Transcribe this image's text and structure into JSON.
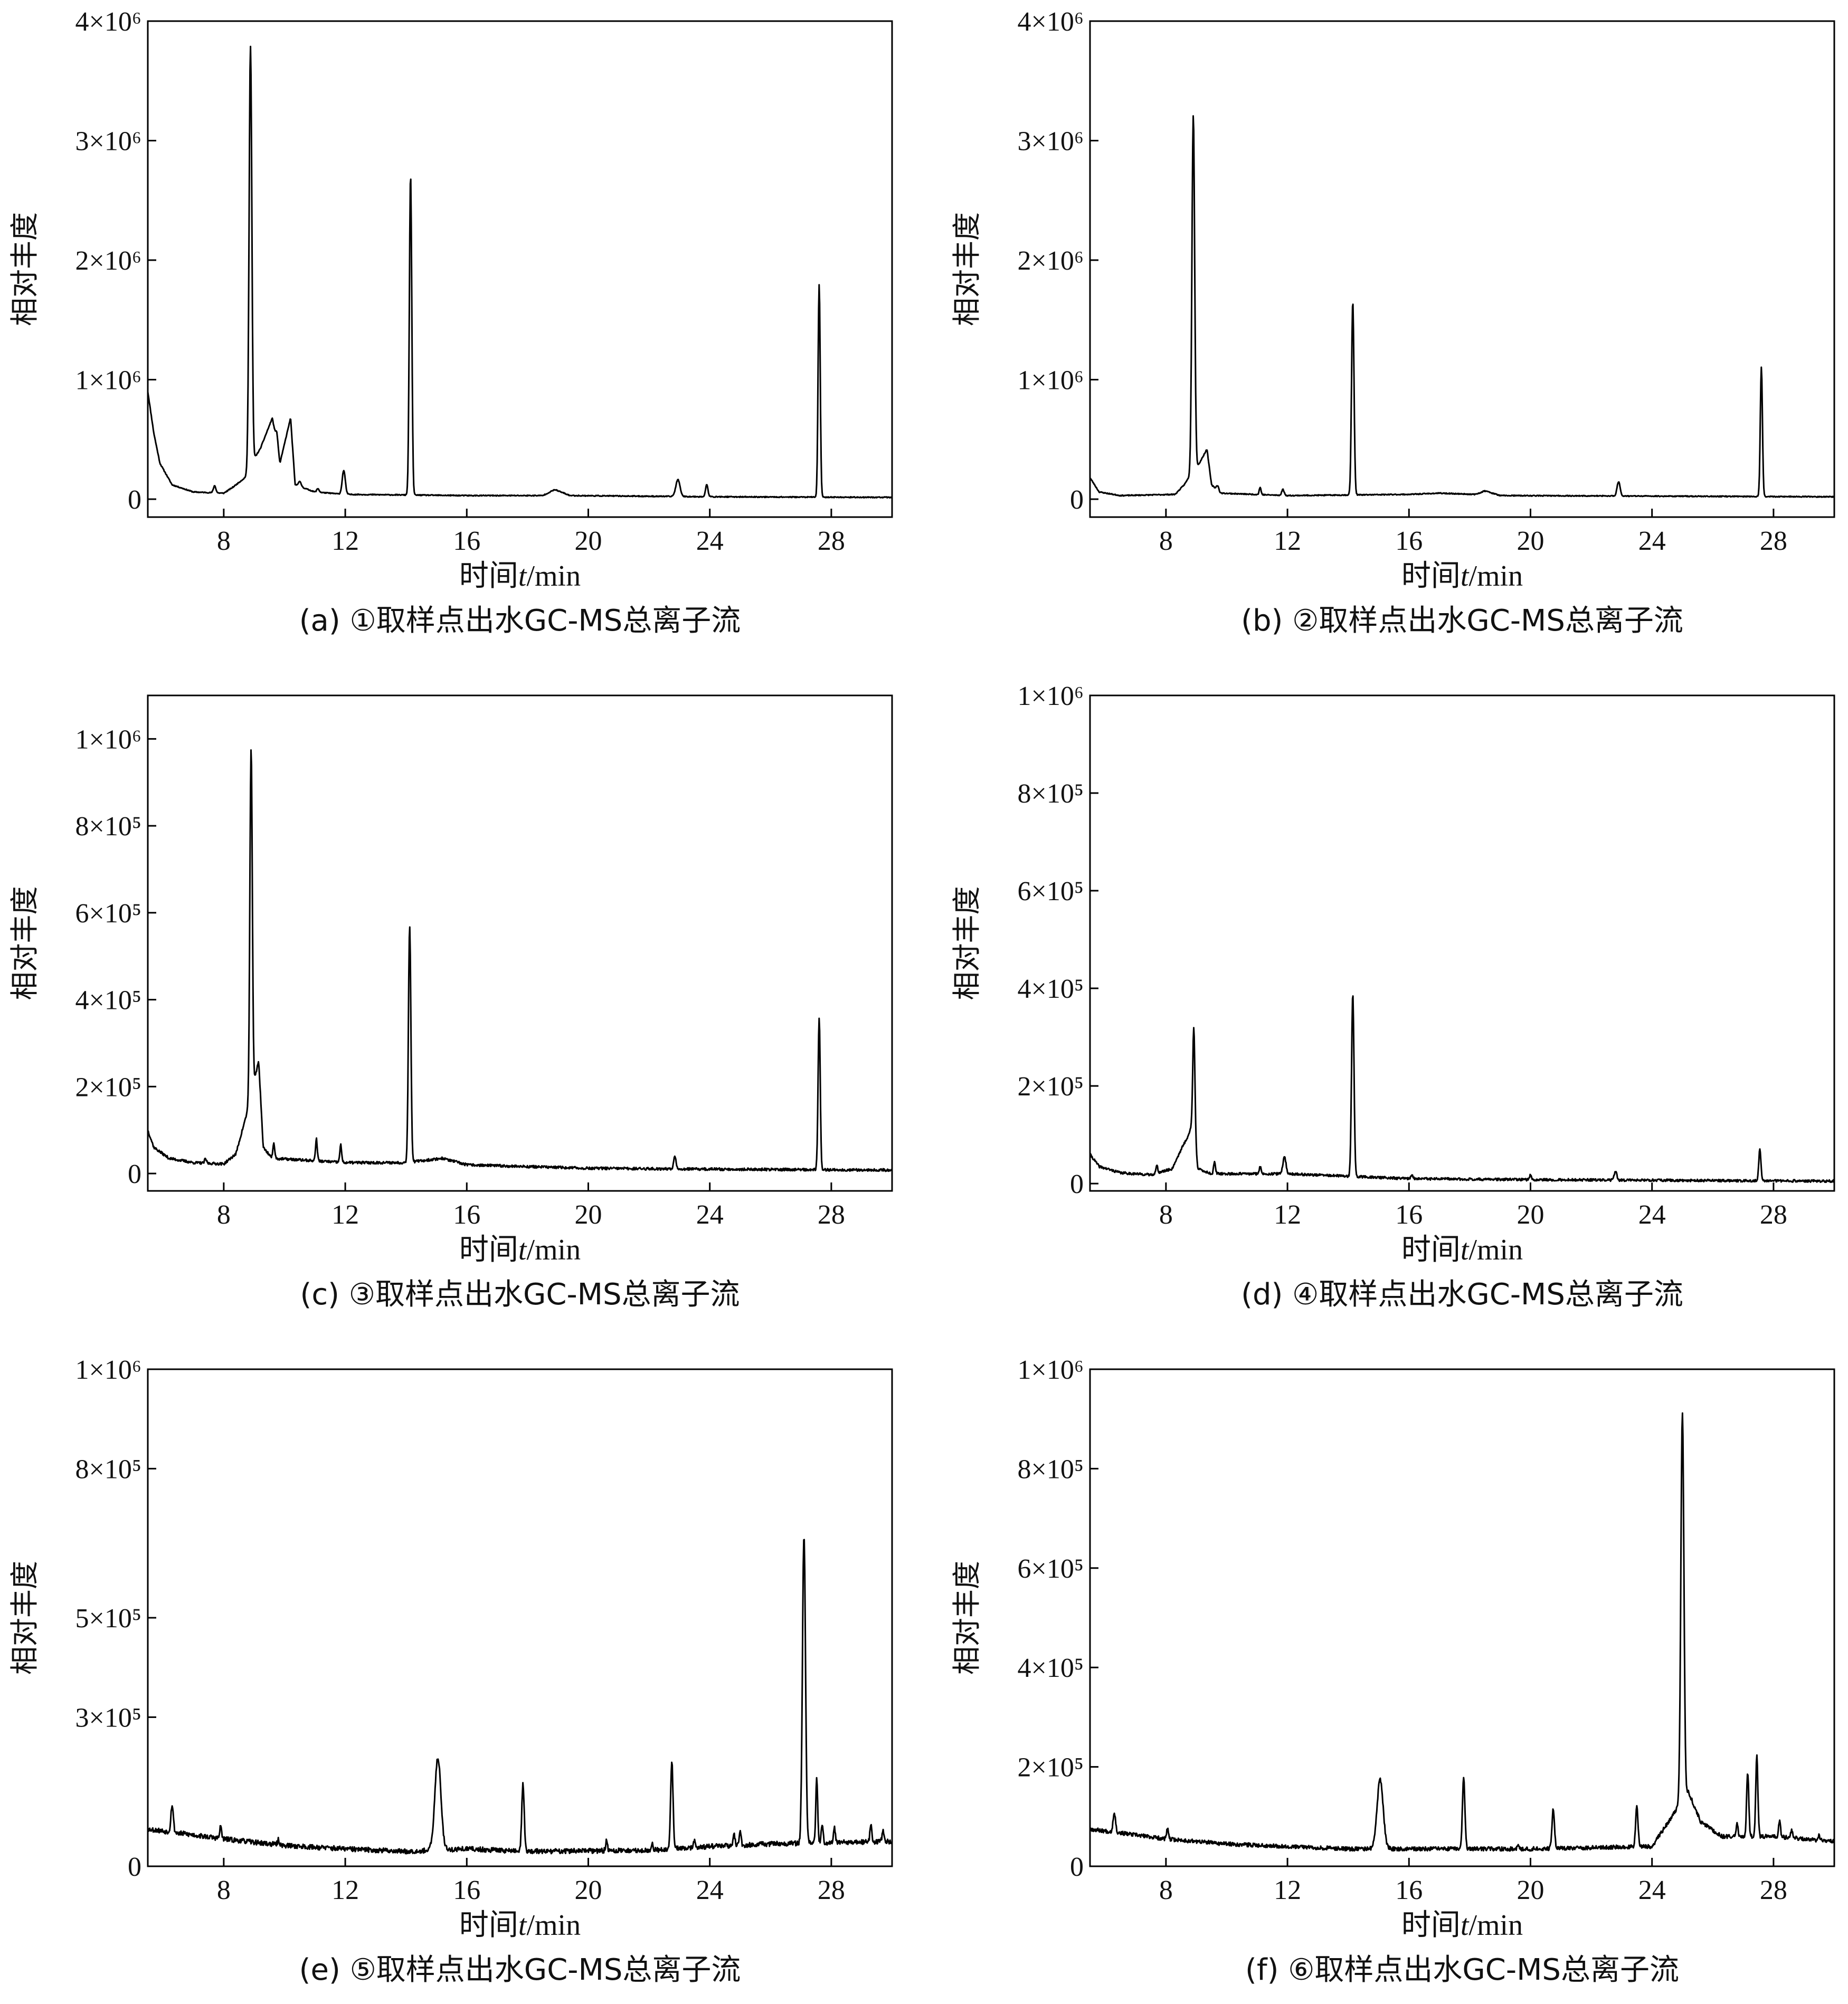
{
  "panels": [
    {
      "caption": "(a) ①取样点出水GC-MS总离子流",
      "ylabel": "相对丰度",
      "xlabel_pre": "时间",
      "xlabel_var": "t",
      "xlabel_unit": "/min",
      "chart_data": {
        "type": "line",
        "xlim": [
          5.5,
          30
        ],
        "ylim": [
          -0.15,
          4.0
        ],
        "x_ticks": [
          8,
          12,
          16,
          20,
          24,
          28
        ],
        "y_ticks": [
          {
            "value": 0,
            "label": "0"
          },
          {
            "value": 1,
            "label": "1×10⁶"
          },
          {
            "value": 2,
            "label": "2×10⁶"
          },
          {
            "value": 3,
            "label": "3×10⁶"
          },
          {
            "value": 4,
            "label": "4×10⁶"
          }
        ],
        "y_unit": 1000000,
        "baseline": [
          [
            5.5,
            0.9
          ],
          [
            5.7,
            0.55
          ],
          [
            5.9,
            0.3
          ],
          [
            6.3,
            0.12
          ],
          [
            7,
            0.06
          ],
          [
            8,
            0.05
          ],
          [
            8.3,
            0.1
          ],
          [
            8.7,
            0.18
          ],
          [
            8.85,
            0.28
          ],
          [
            9.2,
            0.42
          ],
          [
            9.6,
            0.68
          ],
          [
            9.85,
            0.3
          ],
          [
            10.2,
            0.68
          ],
          [
            10.35,
            0.12
          ],
          [
            11,
            0.06
          ],
          [
            12,
            0.04
          ],
          [
            16,
            0.03
          ],
          [
            18.5,
            0.03
          ],
          [
            18.9,
            0.08
          ],
          [
            19.4,
            0.03
          ],
          [
            24,
            0.02
          ],
          [
            30,
            0.015
          ]
        ],
        "peaks": [
          [
            8.88,
            3.5,
            0.045
          ],
          [
            14.15,
            2.68,
            0.04
          ],
          [
            27.6,
            1.78,
            0.035
          ],
          [
            9.75,
            0.1,
            0.04
          ],
          [
            11.95,
            0.2,
            0.05
          ],
          [
            22.95,
            0.14,
            0.07
          ],
          [
            23.9,
            0.1,
            0.04
          ],
          [
            7.7,
            0.06,
            0.04
          ],
          [
            10.5,
            0.04,
            0.05
          ],
          [
            11.1,
            0.03,
            0.04
          ]
        ],
        "noise": 0.004,
        "seed": 11
      }
    },
    {
      "caption": "(b) ②取样点出水GC-MS总离子流",
      "ylabel": "相对丰度",
      "xlabel_pre": "时间",
      "xlabel_var": "t",
      "xlabel_unit": "/min",
      "chart_data": {
        "type": "line",
        "xlim": [
          5.5,
          30
        ],
        "ylim": [
          -0.15,
          4.0
        ],
        "x_ticks": [
          8,
          12,
          16,
          20,
          24,
          28
        ],
        "y_ticks": [
          {
            "value": 0,
            "label": "0"
          },
          {
            "value": 1,
            "label": "1×10⁶"
          },
          {
            "value": 2,
            "label": "2×10⁶"
          },
          {
            "value": 3,
            "label": "3×10⁶"
          },
          {
            "value": 4,
            "label": "4×10⁶"
          }
        ],
        "y_unit": 1000000,
        "baseline": [
          [
            5.5,
            0.18
          ],
          [
            5.8,
            0.06
          ],
          [
            6.5,
            0.03
          ],
          [
            8.3,
            0.04
          ],
          [
            8.6,
            0.12
          ],
          [
            8.85,
            0.22
          ],
          [
            9.1,
            0.3
          ],
          [
            9.35,
            0.42
          ],
          [
            9.5,
            0.12
          ],
          [
            9.8,
            0.05
          ],
          [
            12,
            0.03
          ],
          [
            16,
            0.04
          ],
          [
            17,
            0.05
          ],
          [
            18.2,
            0.04
          ],
          [
            18.5,
            0.07
          ],
          [
            19,
            0.03
          ],
          [
            30,
            0.02
          ]
        ],
        "peaks": [
          [
            8.9,
            2.98,
            0.045
          ],
          [
            14.15,
            1.62,
            0.04
          ],
          [
            27.6,
            1.08,
            0.035
          ],
          [
            22.9,
            0.12,
            0.05
          ],
          [
            11.1,
            0.06,
            0.03
          ],
          [
            11.85,
            0.05,
            0.04
          ],
          [
            9.7,
            0.04,
            0.04
          ]
        ],
        "noise": 0.004,
        "seed": 23
      }
    },
    {
      "caption": "(c) ③取样点出水GC-MS总离子流",
      "ylabel": "相对丰度",
      "xlabel_pre": "时间",
      "xlabel_var": "t",
      "xlabel_unit": "/min",
      "chart_data": {
        "type": "line",
        "xlim": [
          5.5,
          30
        ],
        "ylim": [
          -0.4,
          11.0
        ],
        "x_ticks": [
          8,
          12,
          16,
          20,
          24,
          28
        ],
        "y_ticks": [
          {
            "value": 0,
            "label": "0"
          },
          {
            "value": 2,
            "label": "2×10⁵"
          },
          {
            "value": 4,
            "label": "4×10⁵"
          },
          {
            "value": 6,
            "label": "6×10⁵"
          },
          {
            "value": 8,
            "label": "8×10⁵"
          },
          {
            "value": 10,
            "label": "1×10⁶"
          }
        ],
        "y_unit": 100000,
        "baseline": [
          [
            5.5,
            1.0
          ],
          [
            5.7,
            0.6
          ],
          [
            6.2,
            0.35
          ],
          [
            7,
            0.25
          ],
          [
            8,
            0.22
          ],
          [
            8.4,
            0.45
          ],
          [
            8.65,
            1.1
          ],
          [
            8.85,
            1.6
          ],
          [
            9.0,
            2.1
          ],
          [
            9.15,
            2.6
          ],
          [
            9.3,
            0.6
          ],
          [
            9.6,
            0.35
          ],
          [
            12,
            0.25
          ],
          [
            14,
            0.25
          ],
          [
            15.2,
            0.35
          ],
          [
            16,
            0.2
          ],
          [
            20,
            0.12
          ],
          [
            24,
            0.1
          ],
          [
            30,
            0.08
          ]
        ],
        "peaks": [
          [
            8.9,
            8.0,
            0.04
          ],
          [
            14.12,
            5.45,
            0.04
          ],
          [
            27.6,
            3.5,
            0.035
          ],
          [
            9.65,
            0.35,
            0.03
          ],
          [
            11.05,
            0.5,
            0.03
          ],
          [
            11.85,
            0.4,
            0.03
          ],
          [
            22.85,
            0.3,
            0.04
          ],
          [
            7.4,
            0.1,
            0.03
          ]
        ],
        "noise": 0.03,
        "seed": 37
      }
    },
    {
      "caption": "(d) ④取样点出水GC-MS总离子流",
      "ylabel": "相对丰度",
      "xlabel_pre": "时间",
      "xlabel_var": "t",
      "xlabel_unit": "/min",
      "chart_data": {
        "type": "line",
        "xlim": [
          5.5,
          30
        ],
        "ylim": [
          -0.15,
          10.0
        ],
        "x_ticks": [
          8,
          12,
          16,
          20,
          24,
          28
        ],
        "y_ticks": [
          {
            "value": 0,
            "label": "0"
          },
          {
            "value": 2,
            "label": "2×10⁵"
          },
          {
            "value": 4,
            "label": "4×10⁵"
          },
          {
            "value": 6,
            "label": "6×10⁵"
          },
          {
            "value": 8,
            "label": "8×10⁵"
          },
          {
            "value": 10,
            "label": "1×10⁶"
          }
        ],
        "y_unit": 100000,
        "baseline": [
          [
            5.5,
            0.6
          ],
          [
            5.8,
            0.35
          ],
          [
            6.5,
            0.22
          ],
          [
            7.5,
            0.18
          ],
          [
            8.2,
            0.3
          ],
          [
            8.5,
            0.7
          ],
          [
            8.75,
            1.0
          ],
          [
            8.9,
            1.3
          ],
          [
            9.05,
            0.3
          ],
          [
            9.5,
            0.2
          ],
          [
            12,
            0.2
          ],
          [
            14,
            0.15
          ],
          [
            16,
            0.1
          ],
          [
            20,
            0.08
          ],
          [
            30,
            0.05
          ]
        ],
        "peaks": [
          [
            8.92,
            2.0,
            0.035
          ],
          [
            14.15,
            3.75,
            0.04
          ],
          [
            27.55,
            0.65,
            0.035
          ],
          [
            11.9,
            0.35,
            0.05
          ],
          [
            9.6,
            0.25,
            0.03
          ],
          [
            7.7,
            0.15,
            0.03
          ],
          [
            11.1,
            0.15,
            0.03
          ],
          [
            22.8,
            0.18,
            0.04
          ],
          [
            16.1,
            0.1,
            0.03
          ],
          [
            20,
            0.1,
            0.03
          ]
        ],
        "noise": 0.025,
        "seed": 41
      }
    },
    {
      "caption": "(e) ⑤取样点出水GC-MS总离子流",
      "ylabel": "相对丰度",
      "xlabel_pre": "时间",
      "xlabel_var": "t",
      "xlabel_unit": "/min",
      "chart_data": {
        "type": "line",
        "xlim": [
          5.5,
          30
        ],
        "ylim": [
          0,
          10.0
        ],
        "x_ticks": [
          8,
          12,
          16,
          20,
          24,
          28
        ],
        "y_ticks": [
          {
            "value": 0,
            "label": "0"
          },
          {
            "value": 3,
            "label": "3×10⁵"
          },
          {
            "value": 5,
            "label": "5×10⁵"
          },
          {
            "value": 8,
            "label": "8×10⁵"
          },
          {
            "value": 10,
            "label": "1×10⁶"
          }
        ],
        "y_unit": 100000,
        "baseline": [
          [
            5.5,
            0.75
          ],
          [
            8,
            0.55
          ],
          [
            10,
            0.42
          ],
          [
            12,
            0.35
          ],
          [
            14,
            0.3
          ],
          [
            16,
            0.35
          ],
          [
            18,
            0.3
          ],
          [
            22,
            0.32
          ],
          [
            24,
            0.4
          ],
          [
            26,
            0.45
          ],
          [
            30,
            0.5
          ]
        ],
        "peaks": [
          [
            15.05,
            1.85,
            0.1
          ],
          [
            17.85,
            1.35,
            0.04
          ],
          [
            22.75,
            1.75,
            0.04
          ],
          [
            27.1,
            6.2,
            0.05
          ],
          [
            27.52,
            1.3,
            0.03
          ],
          [
            6.3,
            0.55,
            0.04
          ],
          [
            7.9,
            0.25,
            0.03
          ],
          [
            9.8,
            0.1,
            0.03
          ],
          [
            20.6,
            0.2,
            0.03
          ],
          [
            22.1,
            0.15,
            0.03
          ],
          [
            23.5,
            0.15,
            0.03
          ],
          [
            24.8,
            0.2,
            0.03
          ],
          [
            25,
            0.3,
            0.03
          ],
          [
            27.7,
            0.4,
            0.03
          ],
          [
            28.1,
            0.3,
            0.03
          ],
          [
            29.3,
            0.35,
            0.03
          ],
          [
            29.7,
            0.2,
            0.03
          ]
        ],
        "noise": 0.05,
        "seed": 53
      }
    },
    {
      "caption": "(f) ⑥取样点出水GC-MS总离子流",
      "ylabel": "相对丰度",
      "xlabel_pre": "时间",
      "xlabel_var": "t",
      "xlabel_unit": "/min",
      "chart_data": {
        "type": "line",
        "xlim": [
          5.5,
          30
        ],
        "ylim": [
          0,
          10.0
        ],
        "x_ticks": [
          8,
          12,
          16,
          20,
          24,
          28
        ],
        "y_ticks": [
          {
            "value": 0,
            "label": "0"
          },
          {
            "value": 2,
            "label": "2×10⁵"
          },
          {
            "value": 4,
            "label": "4×10⁵"
          },
          {
            "value": 6,
            "label": "6×10⁵"
          },
          {
            "value": 8,
            "label": "8×10⁵"
          },
          {
            "value": 10,
            "label": "1×10⁶"
          }
        ],
        "y_unit": 100000,
        "baseline": [
          [
            5.5,
            0.75
          ],
          [
            8,
            0.55
          ],
          [
            10,
            0.45
          ],
          [
            12,
            0.4
          ],
          [
            14,
            0.35
          ],
          [
            16,
            0.35
          ],
          [
            20,
            0.35
          ],
          [
            24,
            0.4
          ],
          [
            25.2,
            1.5
          ],
          [
            25.6,
            0.9
          ],
          [
            26.3,
            0.6
          ],
          [
            28,
            0.6
          ],
          [
            30,
            0.5
          ]
        ],
        "peaks": [
          [
            15.05,
            1.4,
            0.1
          ],
          [
            17.8,
            1.45,
            0.04
          ],
          [
            20.75,
            0.8,
            0.04
          ],
          [
            23.5,
            0.8,
            0.04
          ],
          [
            25.0,
            7.8,
            0.05
          ],
          [
            27.15,
            1.3,
            0.035
          ],
          [
            27.45,
            1.6,
            0.035
          ],
          [
            6.3,
            0.4,
            0.04
          ],
          [
            8.05,
            0.2,
            0.03
          ],
          [
            19.6,
            0.1,
            0.03
          ],
          [
            26.8,
            0.3,
            0.03
          ],
          [
            28.2,
            0.35,
            0.03
          ],
          [
            28.6,
            0.15,
            0.03
          ],
          [
            29.5,
            0.1,
            0.03
          ]
        ],
        "noise": 0.04,
        "seed": 67
      }
    }
  ]
}
